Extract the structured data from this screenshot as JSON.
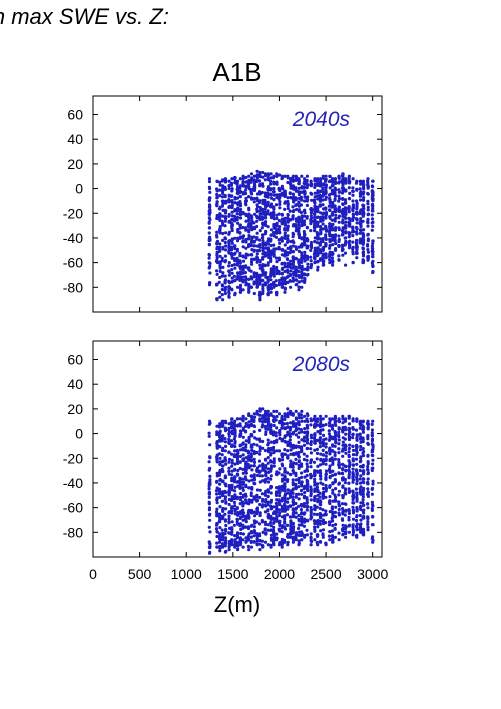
{
  "figure": {
    "title": "in max SWE vs. Z:",
    "scenario": "A1B",
    "xlabel": "Z(m)"
  },
  "colors": {
    "points": "#1f1fc0",
    "panel_label": "#2424b8",
    "axis": "#000000"
  },
  "chart_data": [
    {
      "type": "scatter",
      "panel_label": "2040s",
      "xlabel": "Z(m)",
      "ylabel": "",
      "xlim": [
        0,
        3100
      ],
      "ylim": [
        -100,
        75
      ],
      "xticks": [
        0,
        500,
        1000,
        1500,
        2000,
        2500,
        3000
      ],
      "xtick_labels": [
        "0",
        "500",
        "1000",
        "1500",
        "2000",
        "2500",
        "3000"
      ],
      "yticks": [
        -80,
        -60,
        -40,
        -20,
        0,
        20,
        40,
        60
      ],
      "ytick_labels": [
        "-80",
        "-60",
        "-40",
        "-20",
        "0",
        "20",
        "40",
        "60"
      ],
      "grid": false,
      "x_range_of_points": [
        1250,
        3000
      ],
      "columns": [
        [
          1250,
          -78,
          8
        ],
        [
          1330,
          -90,
          6
        ],
        [
          1360,
          -88,
          5
        ],
        [
          1390,
          -90,
          7
        ],
        [
          1420,
          -85,
          8
        ],
        [
          1460,
          -88,
          6
        ],
        [
          1490,
          -82,
          8
        ],
        [
          1520,
          -86,
          9
        ],
        [
          1550,
          -80,
          6
        ],
        [
          1580,
          -84,
          8
        ],
        [
          1610,
          -82,
          10
        ],
        [
          1640,
          -78,
          9
        ],
        [
          1670,
          -84,
          10
        ],
        [
          1700,
          -80,
          12
        ],
        [
          1730,
          -85,
          10
        ],
        [
          1760,
          -80,
          14
        ],
        [
          1790,
          -90,
          13
        ],
        [
          1820,
          -85,
          13
        ],
        [
          1850,
          -78,
          12
        ],
        [
          1880,
          -86,
          12
        ],
        [
          1910,
          -84,
          12
        ],
        [
          1940,
          -80,
          10
        ],
        [
          1970,
          -86,
          12
        ],
        [
          2000,
          -78,
          11
        ],
        [
          2030,
          -80,
          10
        ],
        [
          2060,
          -84,
          10
        ],
        [
          2090,
          -76,
          10
        ],
        [
          2120,
          -80,
          8
        ],
        [
          2150,
          -75,
          10
        ],
        [
          2180,
          -78,
          10
        ],
        [
          2210,
          -82,
          8
        ],
        [
          2240,
          -80,
          10
        ],
        [
          2270,
          -76,
          8
        ],
        [
          2300,
          -70,
          10
        ],
        [
          2340,
          -64,
          6
        ],
        [
          2380,
          -60,
          8
        ],
        [
          2410,
          -66,
          8
        ],
        [
          2440,
          -58,
          8
        ],
        [
          2470,
          -62,
          10
        ],
        [
          2500,
          -56,
          10
        ],
        [
          2540,
          -60,
          10
        ],
        [
          2570,
          -62,
          8
        ],
        [
          2600,
          -50,
          8
        ],
        [
          2640,
          -58,
          10
        ],
        [
          2680,
          -54,
          12
        ],
        [
          2710,
          -62,
          8
        ],
        [
          2750,
          -48,
          10
        ],
        [
          2790,
          -60,
          8
        ],
        [
          2830,
          -56,
          6
        ],
        [
          2870,
          -44,
          6
        ],
        [
          2900,
          -60,
          6
        ],
        [
          2950,
          -58,
          8
        ],
        [
          3000,
          -68,
          6
        ]
      ]
    },
    {
      "type": "scatter",
      "panel_label": "2080s",
      "xlabel": "Z(m)",
      "ylabel": "",
      "xlim": [
        0,
        3100
      ],
      "ylim": [
        -100,
        75
      ],
      "xticks": [
        0,
        500,
        1000,
        1500,
        2000,
        2500,
        3000
      ],
      "xtick_labels": [
        "0",
        "500",
        "1000",
        "1500",
        "2000",
        "2500",
        "3000"
      ],
      "yticks": [
        -80,
        -60,
        -40,
        -20,
        0,
        20,
        40,
        60
      ],
      "ytick_labels": [
        "-80",
        "-60",
        "-40",
        "-20",
        "0",
        "20",
        "40",
        "60"
      ],
      "grid": false,
      "x_range_of_points": [
        1250,
        3000
      ],
      "columns": [
        [
          1250,
          -97,
          10
        ],
        [
          1330,
          -92,
          6
        ],
        [
          1360,
          -95,
          8
        ],
        [
          1390,
          -92,
          10
        ],
        [
          1420,
          -96,
          10
        ],
        [
          1460,
          -94,
          8
        ],
        [
          1490,
          -90,
          12
        ],
        [
          1520,
          -92,
          10
        ],
        [
          1550,
          -94,
          12
        ],
        [
          1580,
          -90,
          12
        ],
        [
          1610,
          -92,
          14
        ],
        [
          1640,
          -88,
          12
        ],
        [
          1670,
          -94,
          16
        ],
        [
          1700,
          -92,
          14
        ],
        [
          1730,
          -88,
          16
        ],
        [
          1760,
          -90,
          18
        ],
        [
          1790,
          -94,
          20
        ],
        [
          1820,
          -92,
          20
        ],
        [
          1850,
          -88,
          18
        ],
        [
          1880,
          -90,
          18
        ],
        [
          1910,
          -92,
          16
        ],
        [
          1940,
          -90,
          18
        ],
        [
          1970,
          -86,
          18
        ],
        [
          2000,
          -90,
          16
        ],
        [
          2030,
          -92,
          14
        ],
        [
          2060,
          -88,
          16
        ],
        [
          2090,
          -90,
          20
        ],
        [
          2120,
          -84,
          18
        ],
        [
          2150,
          -88,
          16
        ],
        [
          2180,
          -86,
          18
        ],
        [
          2210,
          -90,
          16
        ],
        [
          2240,
          -86,
          18
        ],
        [
          2270,
          -84,
          14
        ],
        [
          2300,
          -82,
          16
        ],
        [
          2340,
          -90,
          12
        ],
        [
          2380,
          -86,
          14
        ],
        [
          2410,
          -90,
          12
        ],
        [
          2440,
          -88,
          14
        ],
        [
          2470,
          -84,
          12
        ],
        [
          2500,
          -90,
          14
        ],
        [
          2540,
          -86,
          12
        ],
        [
          2570,
          -88,
          12
        ],
        [
          2600,
          -84,
          14
        ],
        [
          2640,
          -86,
          12
        ],
        [
          2680,
          -82,
          14
        ],
        [
          2710,
          -84,
          12
        ],
        [
          2750,
          -80,
          14
        ],
        [
          2790,
          -82,
          12
        ],
        [
          2830,
          -84,
          12
        ],
        [
          2870,
          -80,
          10
        ],
        [
          2900,
          -82,
          10
        ],
        [
          2950,
          -78,
          10
        ],
        [
          3000,
          -88,
          10
        ]
      ]
    }
  ]
}
